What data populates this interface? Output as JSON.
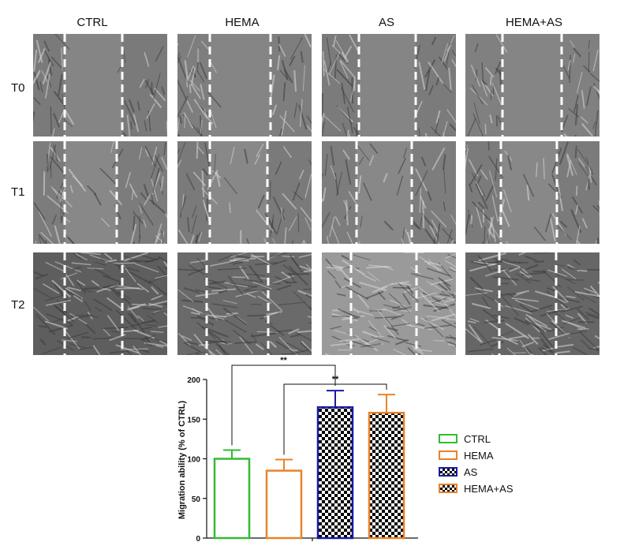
{
  "columns": [
    "CTRL",
    "HEMA",
    "AS",
    "HEMA+AS"
  ],
  "rows": [
    "T0",
    "T1",
    "T2"
  ],
  "micrographs": {
    "description_icon": "scratch-assay-micrograph-icon",
    "edge_line_color": "#ffffff"
  },
  "chart_data": {
    "type": "bar",
    "categories": [
      "CTRL",
      "HEMA",
      "AS",
      "HEMA+AS"
    ],
    "values": [
      100,
      85,
      165,
      158
    ],
    "errors": [
      11,
      14,
      21,
      23
    ],
    "ylabel": "Migration ability (% of CTRL)",
    "xlabel": "",
    "ylim": [
      0,
      200
    ],
    "yticks": [
      0,
      50,
      100,
      150,
      200
    ],
    "colors": [
      "#33bb33",
      "#e8822a",
      "#1a1aa6",
      "#e8822a"
    ],
    "fills": [
      "white",
      "white",
      "checker",
      "checker"
    ],
    "significance": [
      {
        "from": 0,
        "to": 2,
        "label": "**"
      },
      {
        "from": 1,
        "to": 3,
        "label": "**"
      }
    ],
    "legend": {
      "position": "right",
      "entries": [
        "CTRL",
        "HEMA",
        "AS",
        "HEMA+AS"
      ]
    }
  }
}
